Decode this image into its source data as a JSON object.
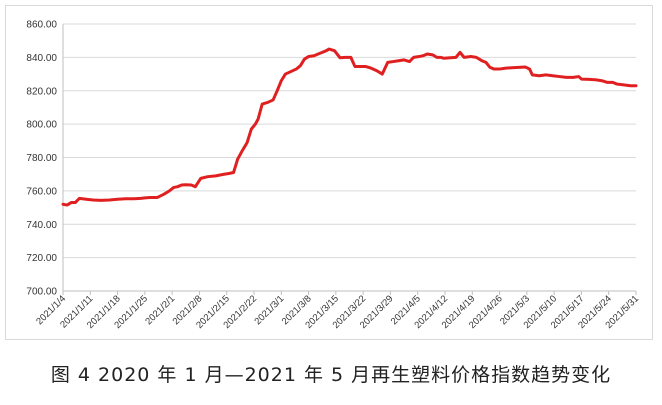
{
  "figure": {
    "caption": "图 4  2020 年 1 月—2021 年 5 月再生塑料价格指数趋势变化"
  },
  "chart_data": {
    "type": "line",
    "title": "",
    "xlabel": "",
    "ylabel": "",
    "ylim": [
      700,
      860
    ],
    "yticks": [
      "700.00",
      "720.00",
      "740.00",
      "760.00",
      "780.00",
      "800.00",
      "820.00",
      "840.00",
      "860.00"
    ],
    "grid": true,
    "legend": "none",
    "line_color": "#e02020",
    "categories": [
      "2021/1/4",
      "2021/1/11",
      "2021/1/18",
      "2021/1/25",
      "2021/2/1",
      "2021/2/8",
      "2021/2/15",
      "2021/2/22",
      "2021/3/1",
      "2021/3/8",
      "2021/3/15",
      "2021/3/22",
      "2021/3/29",
      "2021/4/5",
      "2021/4/12",
      "2021/4/19",
      "2021/4/26",
      "2021/5/3",
      "2021/5/10",
      "2021/5/17",
      "2021/5/24",
      "2021/5/31"
    ],
    "series": [
      {
        "points": [
          [
            0,
            752
          ],
          [
            0.15,
            751.5
          ],
          [
            0.3,
            753
          ],
          [
            0.45,
            753
          ],
          [
            0.6,
            755.5
          ],
          [
            0.85,
            755
          ],
          [
            1.1,
            754.5
          ],
          [
            1.4,
            754.3
          ],
          [
            1.7,
            754.5
          ],
          [
            2.0,
            755
          ],
          [
            2.3,
            755.3
          ],
          [
            2.6,
            755.3
          ],
          [
            2.85,
            755.5
          ],
          [
            3.0,
            755.8
          ],
          [
            3.2,
            756
          ],
          [
            3.45,
            756
          ],
          [
            3.7,
            758
          ],
          [
            3.9,
            760
          ],
          [
            4.05,
            762
          ],
          [
            4.2,
            762.5
          ],
          [
            4.35,
            763.5
          ],
          [
            4.5,
            763.7
          ],
          [
            4.7,
            763.5
          ],
          [
            4.85,
            762.5
          ],
          [
            5.05,
            767.5
          ],
          [
            5.3,
            768.5
          ],
          [
            5.6,
            769
          ],
          [
            5.85,
            769.8
          ],
          [
            6.1,
            770.5
          ],
          [
            6.25,
            771
          ],
          [
            6.4,
            779
          ],
          [
            6.55,
            783.5
          ],
          [
            6.75,
            789
          ],
          [
            6.9,
            797
          ],
          [
            7.05,
            800
          ],
          [
            7.15,
            803
          ],
          [
            7.3,
            812
          ],
          [
            7.5,
            813
          ],
          [
            7.7,
            814.5
          ],
          [
            7.85,
            820
          ],
          [
            8.0,
            826
          ],
          [
            8.15,
            830
          ],
          [
            8.35,
            831.5
          ],
          [
            8.55,
            833
          ],
          [
            8.7,
            835
          ],
          [
            8.85,
            839
          ],
          [
            9.0,
            840.5
          ],
          [
            9.2,
            841
          ],
          [
            9.35,
            842
          ],
          [
            9.5,
            843
          ],
          [
            9.65,
            844
          ],
          [
            9.75,
            845
          ],
          [
            9.95,
            844
          ],
          [
            10.15,
            839.8
          ],
          [
            10.35,
            840
          ],
          [
            10.55,
            840
          ],
          [
            10.7,
            834.5
          ],
          [
            10.95,
            834.5
          ],
          [
            11.1,
            834.5
          ],
          [
            11.3,
            833.5
          ],
          [
            11.5,
            832
          ],
          [
            11.7,
            830
          ],
          [
            11.9,
            837
          ],
          [
            12.1,
            837.5
          ],
          [
            12.3,
            838
          ],
          [
            12.5,
            838.5
          ],
          [
            12.7,
            837.5
          ],
          [
            12.85,
            840
          ],
          [
            13.05,
            840.5
          ],
          [
            13.2,
            841
          ],
          [
            13.35,
            842
          ],
          [
            13.55,
            841.5
          ],
          [
            13.7,
            840
          ],
          [
            13.85,
            840
          ],
          [
            13.95,
            839.5
          ],
          [
            14.2,
            839.8
          ],
          [
            14.4,
            840
          ],
          [
            14.55,
            843
          ],
          [
            14.7,
            840
          ],
          [
            14.95,
            840.5
          ],
          [
            15.15,
            840
          ],
          [
            15.35,
            838
          ],
          [
            15.5,
            837
          ],
          [
            15.65,
            834
          ],
          [
            15.8,
            833
          ],
          [
            16.0,
            833
          ],
          [
            16.2,
            833.5
          ],
          [
            16.45,
            833.8
          ],
          [
            16.7,
            834
          ],
          [
            16.95,
            834.2
          ],
          [
            17.1,
            833
          ],
          [
            17.2,
            829.5
          ],
          [
            17.45,
            829
          ],
          [
            17.7,
            829.5
          ],
          [
            17.95,
            829
          ],
          [
            18.2,
            828.5
          ],
          [
            18.45,
            828
          ],
          [
            18.7,
            828
          ],
          [
            18.9,
            828.5
          ],
          [
            19.0,
            827
          ],
          [
            19.3,
            826.8
          ],
          [
            19.55,
            826.5
          ],
          [
            19.75,
            826
          ],
          [
            19.95,
            825
          ],
          [
            20.15,
            825
          ],
          [
            20.3,
            824
          ],
          [
            20.55,
            823.5
          ],
          [
            20.8,
            823
          ],
          [
            21.0,
            823
          ]
        ]
      }
    ]
  }
}
